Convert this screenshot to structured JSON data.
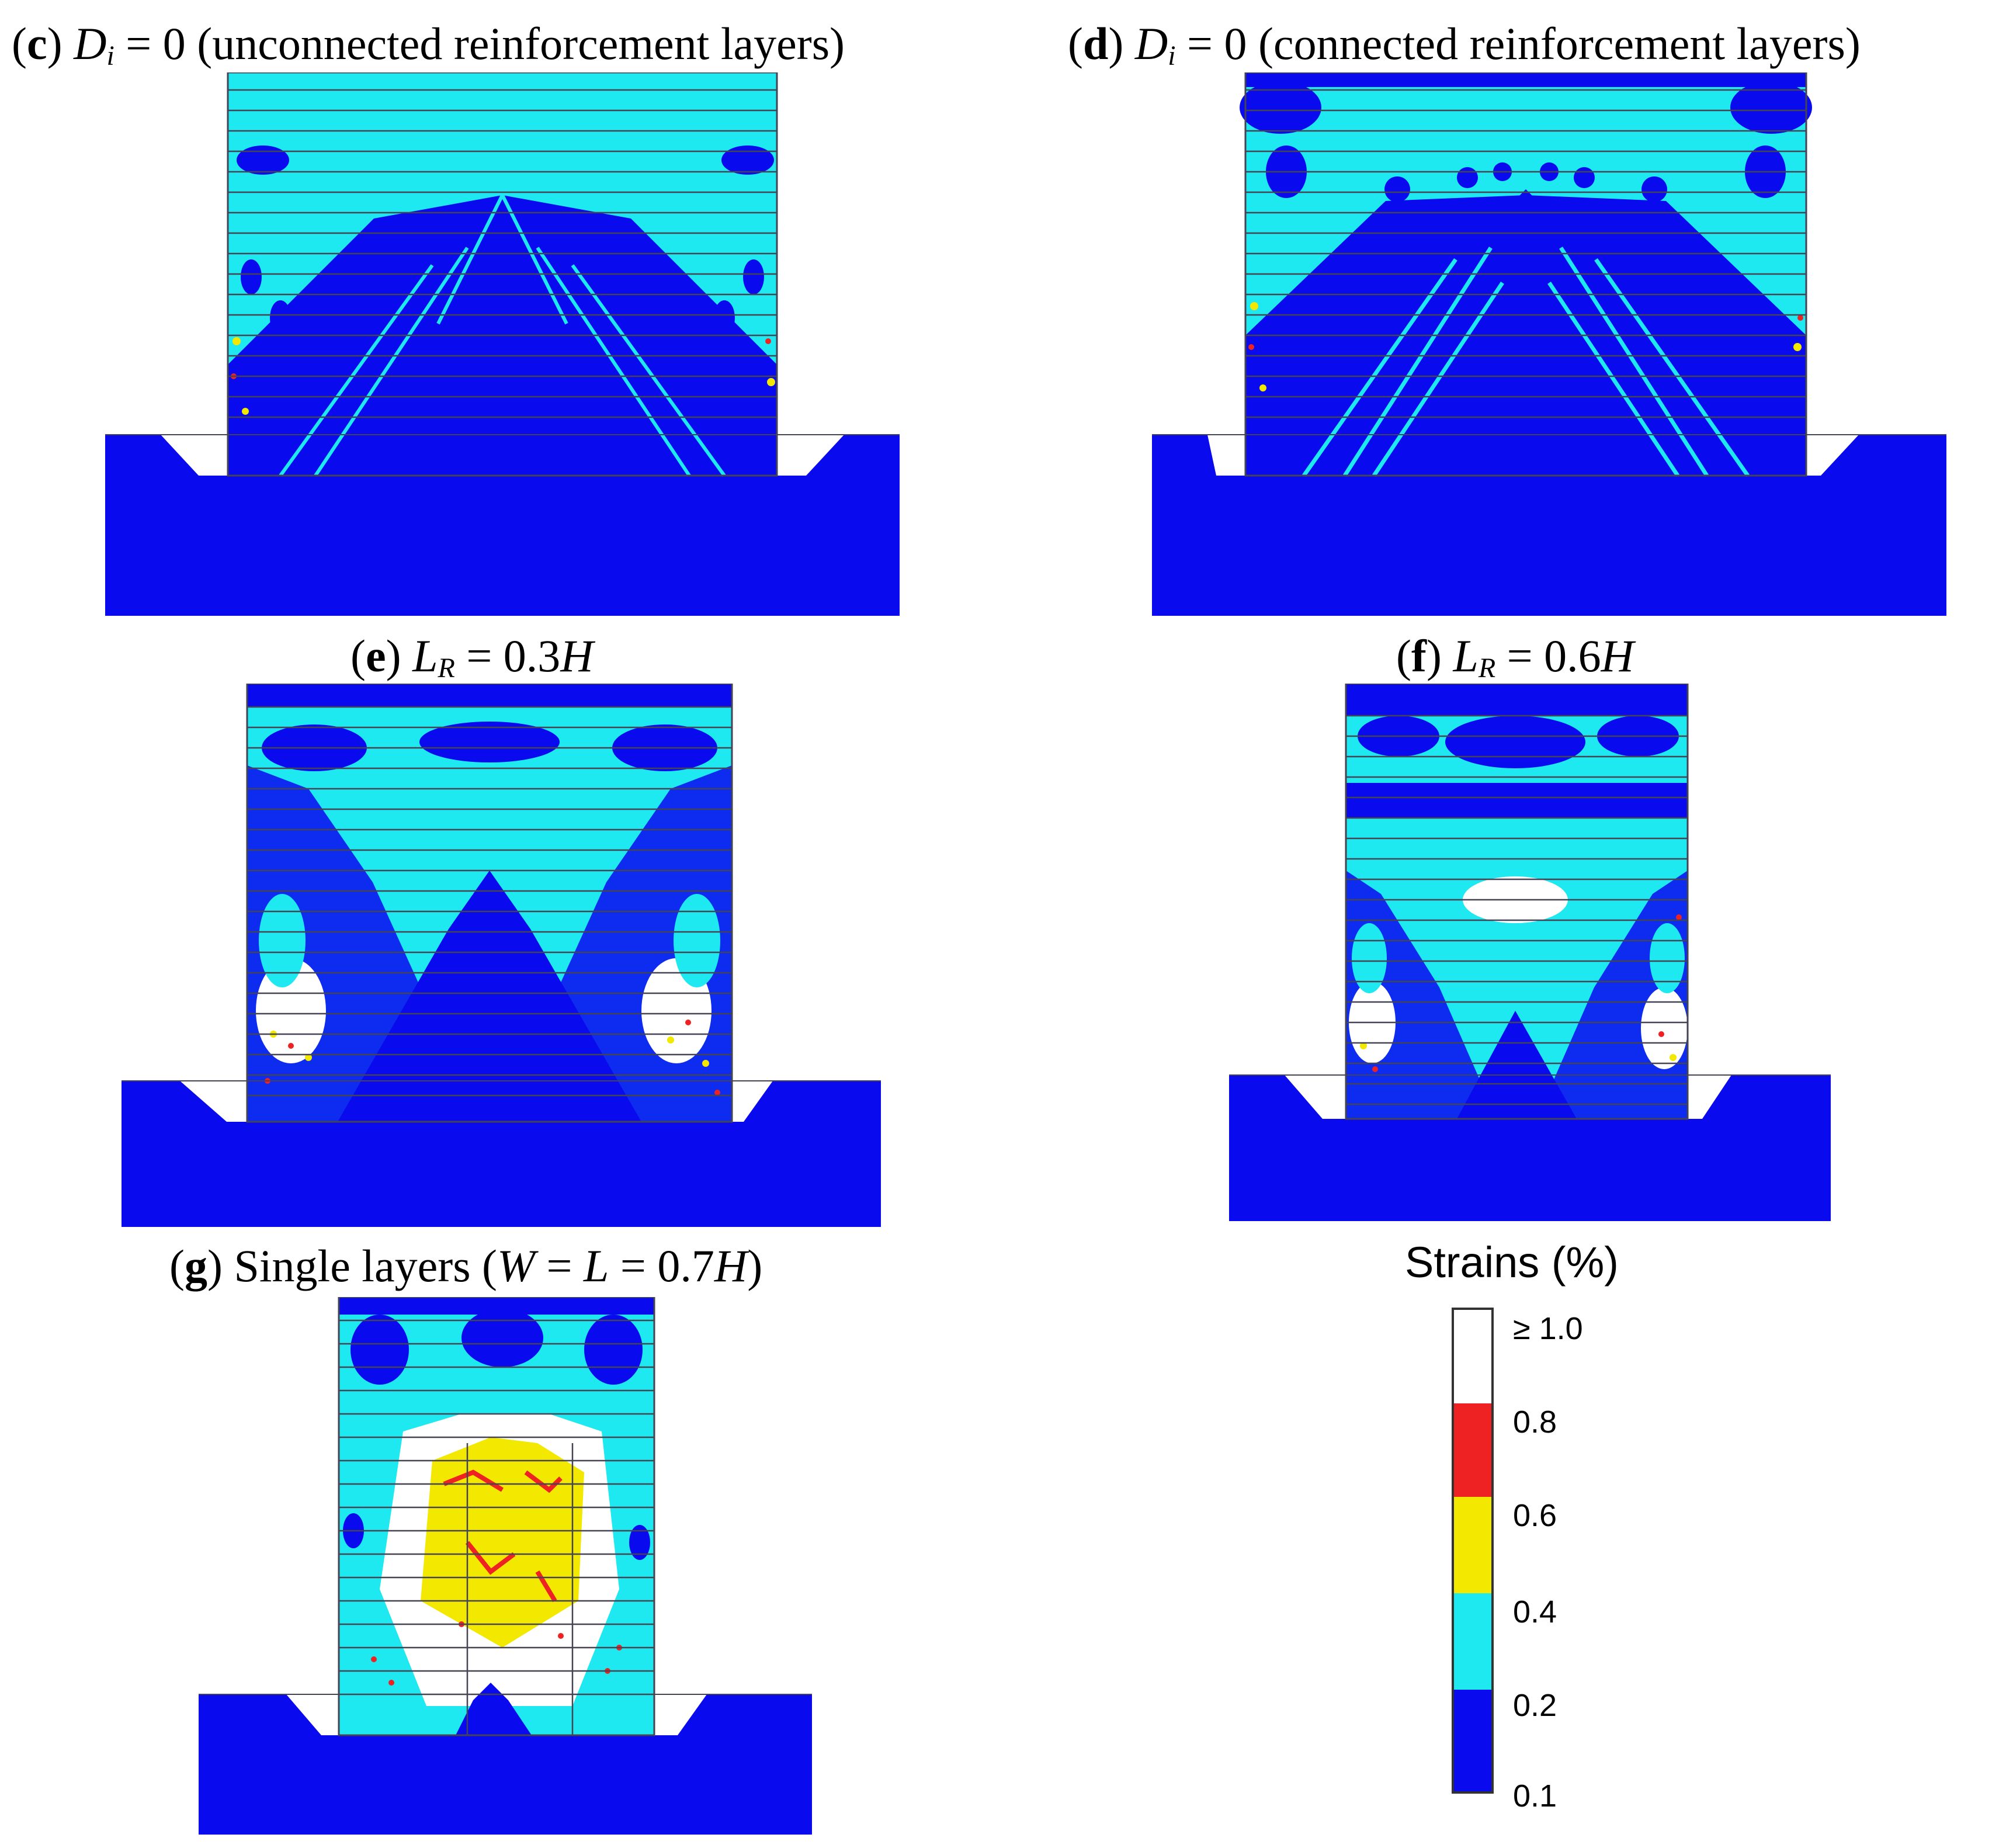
{
  "panels": {
    "c": {
      "letter": "c",
      "symbol": "D",
      "sub": "i",
      "eq": " = 0 (unconnected reinforcement layers)"
    },
    "d": {
      "letter": "d",
      "symbol": "D",
      "sub": "i",
      "eq": " = 0 (connected reinforcement layers)"
    },
    "e": {
      "letter": "e",
      "symbol": "L",
      "sub": "R",
      "eq_num": " = 0.3",
      "eq_h": "H"
    },
    "f": {
      "letter": "f",
      "symbol": "L",
      "sub": "R",
      "eq_num": " = 0.6",
      "eq_h": "H"
    },
    "g": {
      "letter": "g",
      "text": " Single layers (",
      "w": "W",
      "mid": " = ",
      "l": "L",
      "num": " = 0.7",
      "h": "H",
      "close": ")"
    }
  },
  "legend": {
    "title": "Strains (%)",
    "ticks": [
      "≥ 1.0",
      "0.8",
      "0.6",
      "0.4",
      "0.2",
      "0.1"
    ],
    "colors": {
      "ge_1_0": "#ffffff",
      "0_6_to_0_8": "#ee2222",
      "0_4_to_0_6": "#f2e800",
      "0_2_to_0_4": "#1ee8f0",
      "0_1_to_0_2": "#0a0aee"
    }
  }
}
